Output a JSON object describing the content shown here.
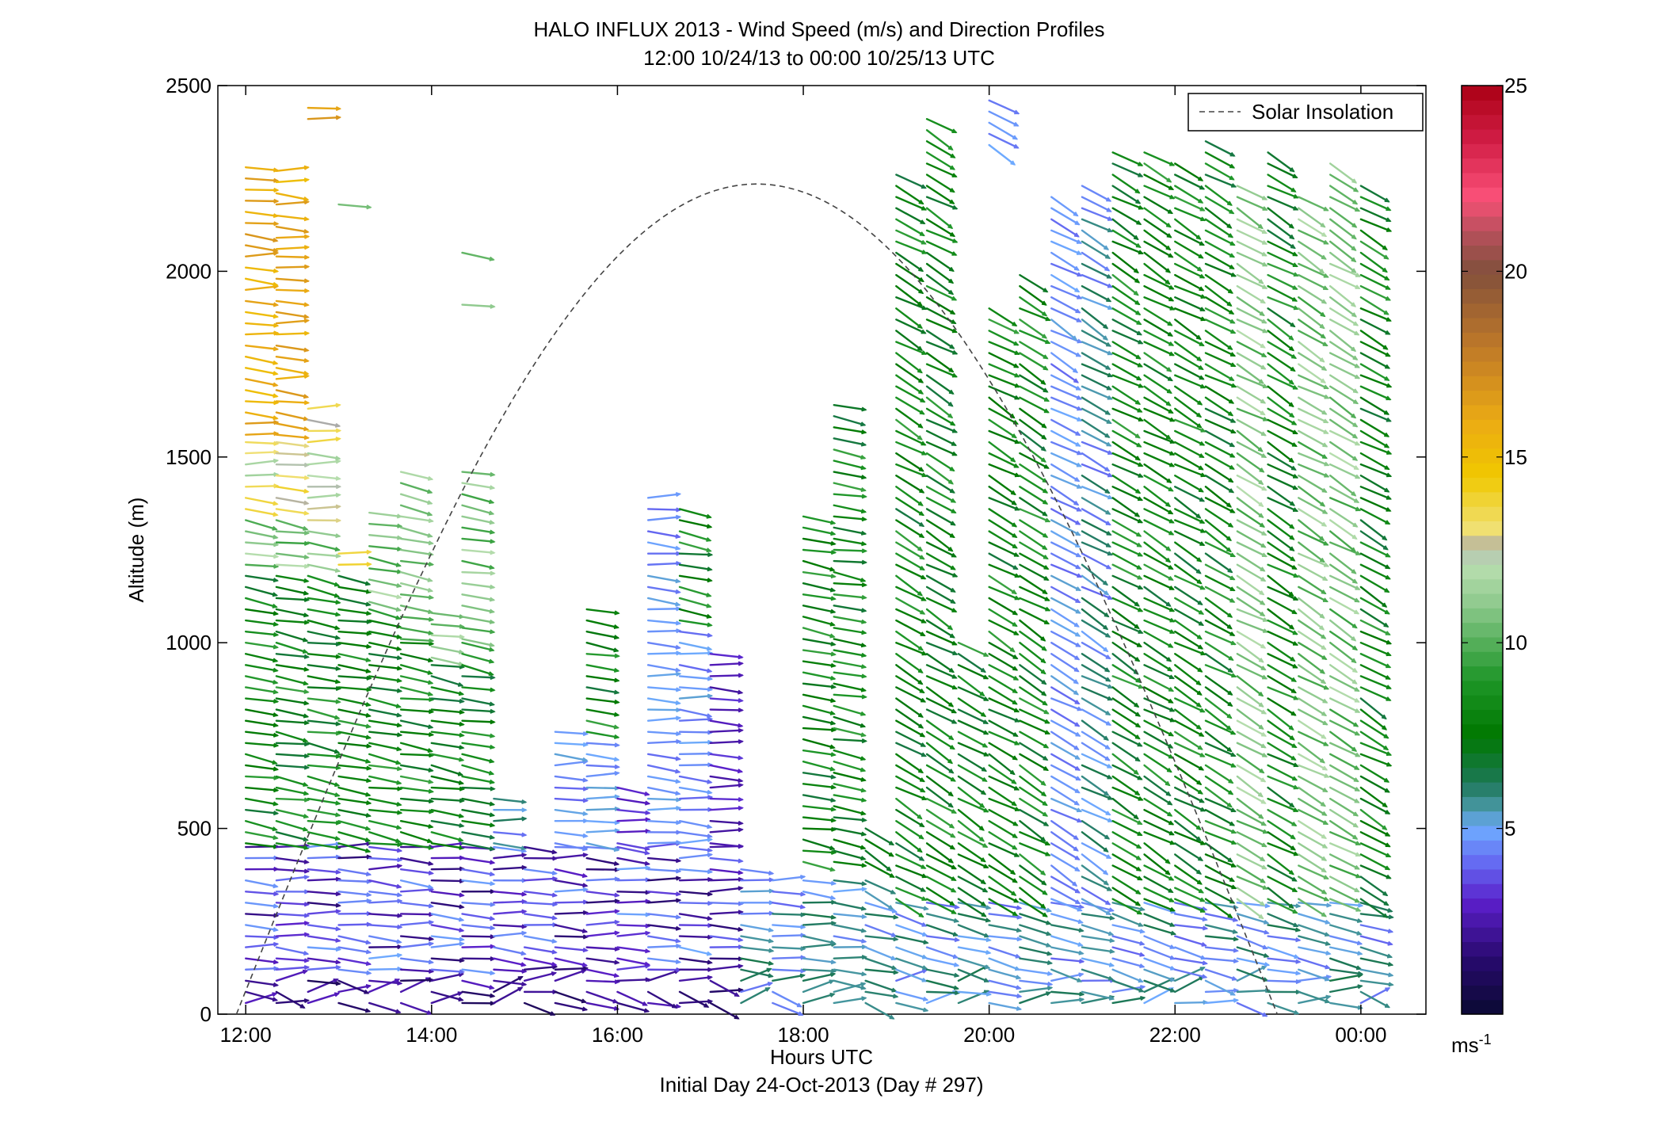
{
  "chart_data": {
    "type": "quiver",
    "title": "HALO INFLUX 2013 - Wind Speed (m/s) and Direction Profiles",
    "subtitle": "12:00 10/24/13 to 00:00 10/25/13  UTC",
    "xlabel": "Hours UTC",
    "xlabel2": "Initial Day 24-Oct-2013 (Day # 297)",
    "ylabel": "Altitude (m)",
    "xlim": [
      11.7,
      24.7
    ],
    "ylim": [
      0,
      2500
    ],
    "x_ticks": [
      {
        "value": 12,
        "label": "12:00"
      },
      {
        "value": 14,
        "label": "14:00"
      },
      {
        "value": 16,
        "label": "16:00"
      },
      {
        "value": 18,
        "label": "18:00"
      },
      {
        "value": 20,
        "label": "20:00"
      },
      {
        "value": 22,
        "label": "22:00"
      },
      {
        "value": 24,
        "label": "00:00"
      }
    ],
    "y_ticks": [
      {
        "value": 0,
        "label": "0"
      },
      {
        "value": 500,
        "label": "500"
      },
      {
        "value": 1000,
        "label": "1000"
      },
      {
        "value": 1500,
        "label": "1500"
      },
      {
        "value": 2000,
        "label": "2000"
      },
      {
        "value": 2500,
        "label": "2500"
      }
    ],
    "colorbar": {
      "range": [
        0,
        25
      ],
      "unit": "ms",
      "unit_exp": "-1",
      "ticks": [
        {
          "value": 5,
          "label": "5"
        },
        {
          "value": 10,
          "label": "10"
        },
        {
          "value": 15,
          "label": "15"
        },
        {
          "value": 20,
          "label": "20"
        },
        {
          "value": 25,
          "label": "25"
        }
      ]
    },
    "legend": {
      "position": "top-right",
      "label": "Solar Insolation",
      "style": "dashed",
      "color": "#444444"
    },
    "solar_insolation": {
      "start": 11.9,
      "peak_time": 17.5,
      "peak_altitude": 2235,
      "end": 23.1
    },
    "profiles": [
      {
        "time": 12.0,
        "tops": [
          [
            0,
            450,
            "dark"
          ],
          [
            450,
            1200,
            "green"
          ],
          [
            1200,
            1350,
            "lightgreen"
          ],
          [
            1350,
            1550,
            "yellowgreen"
          ],
          [
            1550,
            2300,
            "orange"
          ]
        ]
      },
      {
        "time": 12.33,
        "tops": [
          [
            0,
            450,
            "dark"
          ],
          [
            450,
            1200,
            "green"
          ],
          [
            1200,
            1350,
            "lightgreen"
          ],
          [
            1350,
            1550,
            "yellowgreen"
          ],
          [
            1550,
            2050,
            "orange"
          ],
          [
            2050,
            2280,
            "orange"
          ]
        ]
      },
      {
        "time": 12.67,
        "tops": [
          [
            0,
            450,
            "dark"
          ],
          [
            450,
            1200,
            "green"
          ],
          [
            1200,
            1320,
            "lightgreen"
          ],
          [
            1320,
            1650,
            "yellowgreen"
          ],
          [
            2400,
            2440,
            "orange"
          ]
        ]
      },
      {
        "time": 13.0,
        "tops": [
          [
            0,
            450,
            "dark"
          ],
          [
            450,
            1200,
            "green"
          ],
          [
            1200,
            1260,
            "yellow"
          ],
          [
            2170,
            2200,
            "lightgreen"
          ]
        ]
      },
      {
        "time": 13.33,
        "tops": [
          [
            0,
            450,
            "dark"
          ],
          [
            450,
            1100,
            "green"
          ],
          [
            1100,
            1350,
            "lightgreen"
          ]
        ]
      },
      {
        "time": 13.67,
        "tops": [
          [
            0,
            450,
            "dark"
          ],
          [
            450,
            1000,
            "green"
          ],
          [
            1000,
            1480,
            "lightgreen"
          ]
        ]
      },
      {
        "time": 14.0,
        "tops": [
          [
            0,
            450,
            "dark"
          ],
          [
            450,
            950,
            "green"
          ],
          [
            950,
            1100,
            "lightgreen"
          ]
        ]
      },
      {
        "time": 14.33,
        "tops": [
          [
            0,
            450,
            "dark"
          ],
          [
            450,
            1000,
            "green"
          ],
          [
            1000,
            1480,
            "lightgreen"
          ],
          [
            1900,
            1930,
            "lightgreen"
          ],
          [
            2040,
            2070,
            "lightgreen"
          ]
        ]
      },
      {
        "time": 14.67,
        "tops": [
          [
            0,
            450,
            "dark"
          ],
          [
            450,
            600,
            "teal"
          ]
        ]
      },
      {
        "time": 15.0,
        "tops": [
          [
            0,
            450,
            "dark"
          ]
        ]
      },
      {
        "time": 15.33,
        "tops": [
          [
            0,
            450,
            "dark"
          ],
          [
            450,
            780,
            "blue"
          ]
        ]
      },
      {
        "time": 15.67,
        "tops": [
          [
            0,
            450,
            "dark"
          ],
          [
            450,
            750,
            "blue"
          ],
          [
            750,
            1090,
            "green"
          ]
        ]
      },
      {
        "time": 16.0,
        "tops": [
          [
            0,
            450,
            "dark"
          ],
          [
            450,
            620,
            "purple"
          ]
        ]
      },
      {
        "time": 16.33,
        "tops": [
          [
            0,
            450,
            "dark"
          ],
          [
            450,
            1400,
            "blue"
          ]
        ]
      },
      {
        "time": 16.67,
        "tops": [
          [
            0,
            450,
            "dark"
          ],
          [
            450,
            1050,
            "blue"
          ],
          [
            1050,
            1380,
            "green"
          ]
        ]
      },
      {
        "time": 17.0,
        "tops": [
          [
            0,
            450,
            "dark"
          ],
          [
            450,
            980,
            "purple"
          ]
        ]
      },
      {
        "time": 17.33,
        "tops": [
          [
            0,
            400,
            "teal"
          ]
        ]
      },
      {
        "time": 17.67,
        "tops": [
          [
            0,
            380,
            "teal"
          ]
        ]
      },
      {
        "time": 18.0,
        "tops": [
          [
            0,
            380,
            "teal"
          ],
          [
            400,
            1360,
            "green"
          ]
        ]
      },
      {
        "time": 18.33,
        "tops": [
          [
            0,
            380,
            "teal"
          ],
          [
            400,
            1650,
            "green"
          ]
        ]
      },
      {
        "time": 18.67,
        "tops": [
          [
            0,
            380,
            "teal"
          ],
          [
            400,
            520,
            "green"
          ]
        ]
      },
      {
        "time": 19.0,
        "tops": [
          [
            0,
            300,
            "teal"
          ],
          [
            300,
            2280,
            "green"
          ]
        ]
      },
      {
        "time": 19.33,
        "tops": [
          [
            0,
            300,
            "teal"
          ],
          [
            300,
            2420,
            "green"
          ]
        ]
      },
      {
        "time": 19.67,
        "tops": [
          [
            0,
            300,
            "teal"
          ],
          [
            300,
            1000,
            "green"
          ]
        ]
      },
      {
        "time": 20.0,
        "tops": [
          [
            0,
            300,
            "teal"
          ],
          [
            300,
            1900,
            "green"
          ],
          [
            2330,
            2460,
            "blue"
          ]
        ]
      },
      {
        "time": 20.33,
        "tops": [
          [
            0,
            300,
            "teal"
          ],
          [
            300,
            2000,
            "green"
          ]
        ]
      },
      {
        "time": 20.67,
        "tops": [
          [
            0,
            300,
            "teal"
          ],
          [
            300,
            2220,
            "blue"
          ]
        ]
      },
      {
        "time": 21.0,
        "tops": [
          [
            0,
            300,
            "teal"
          ],
          [
            300,
            2250,
            "teal"
          ]
        ]
      },
      {
        "time": 21.33,
        "tops": [
          [
            0,
            300,
            "teal"
          ],
          [
            300,
            2330,
            "green"
          ]
        ]
      },
      {
        "time": 21.67,
        "tops": [
          [
            0,
            300,
            "teal"
          ],
          [
            300,
            2320,
            "green"
          ]
        ]
      },
      {
        "time": 22.0,
        "tops": [
          [
            0,
            300,
            "teal"
          ],
          [
            300,
            2310,
            "green"
          ]
        ]
      },
      {
        "time": 22.33,
        "tops": [
          [
            0,
            300,
            "teal"
          ],
          [
            300,
            2370,
            "green"
          ]
        ]
      },
      {
        "time": 22.67,
        "tops": [
          [
            0,
            300,
            "teal"
          ],
          [
            300,
            2250,
            "lightgreen"
          ]
        ]
      },
      {
        "time": 23.0,
        "tops": [
          [
            0,
            300,
            "teal"
          ],
          [
            300,
            2340,
            "green"
          ]
        ]
      },
      {
        "time": 23.33,
        "tops": [
          [
            0,
            300,
            "teal"
          ],
          [
            300,
            2200,
            "lightgreen"
          ]
        ]
      },
      {
        "time": 23.67,
        "tops": [
          [
            0,
            300,
            "teal"
          ],
          [
            300,
            2290,
            "lightgreen"
          ]
        ]
      },
      {
        "time": 24.0,
        "tops": [
          [
            0,
            300,
            "teal"
          ],
          [
            300,
            2230,
            "green"
          ]
        ]
      }
    ]
  }
}
